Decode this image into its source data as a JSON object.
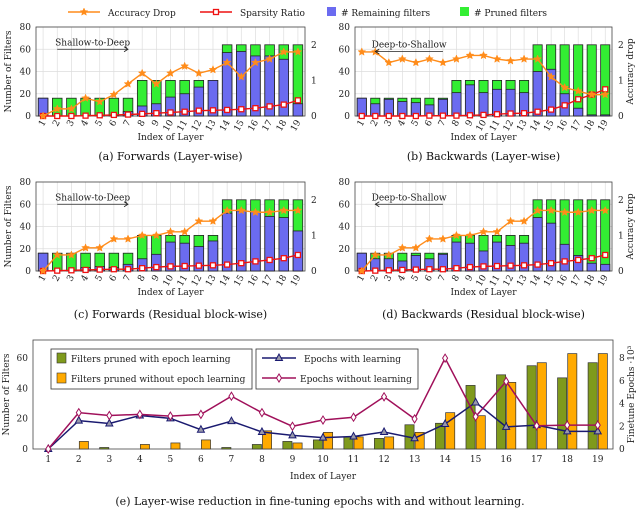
{
  "legend": {
    "accuracy": "Accuracy Drop",
    "sparsity": "Sparsity Ratio",
    "remaining": "# Remaining filters",
    "pruned": "# Pruned filters"
  },
  "colors": {
    "remaining": "#6b6bf0",
    "pruned": "#33ee33",
    "accuracy": "#ff8c1a",
    "sparsity": "#ee1111",
    "with_bar": "#7f9a1c",
    "without_bar": "#ffaa00",
    "with_line": "#1a1a70",
    "without_line": "#a0105a"
  },
  "chart_data": [
    {
      "type": "bar",
      "id": "a",
      "caption": "(a) Forwards (Layer-wise)",
      "annotation": "Shallow-to-Deep",
      "direction": "right",
      "xlabel": "Index of Layer",
      "ylabel": "Number of Filters",
      "y2label": "",
      "ylim": [
        0,
        80
      ],
      "y2lim": [
        0,
        2.5
      ],
      "categories": [
        "1",
        "2",
        "3",
        "4",
        "5",
        "6",
        "7",
        "8",
        "9",
        "10",
        "11",
        "12",
        "13",
        "14",
        "15",
        "16",
        "17",
        "18",
        "19"
      ],
      "total": [
        16,
        16,
        16,
        16,
        16,
        16,
        16,
        32,
        32,
        32,
        32,
        32,
        32,
        64,
        64,
        64,
        64,
        64,
        64
      ],
      "remaining": [
        16,
        0,
        0,
        0,
        0,
        0,
        4,
        9,
        11,
        17,
        20,
        26,
        32,
        57,
        58,
        54,
        54,
        51,
        11
      ],
      "accuracy_drop": [
        0,
        0.2,
        0.2,
        0.5,
        0.4,
        0.6,
        0.9,
        1.2,
        0.9,
        1.2,
        1.4,
        1.2,
        1.3,
        1.5,
        1.1,
        1.5,
        1.6,
        1.8,
        1.8
      ],
      "sparsity_ratio": [
        0,
        0,
        0,
        0.01,
        0.02,
        0.03,
        0.04,
        0.06,
        0.08,
        0.1,
        0.12,
        0.15,
        0.16,
        0.17,
        0.19,
        0.22,
        0.27,
        0.32,
        0.44
      ]
    },
    {
      "type": "bar",
      "id": "b",
      "caption": "(b) Backwards (Layer-wise)",
      "annotation": "Deep-to-Shallow",
      "direction": "left",
      "xlabel": "Index of Layer",
      "ylabel": "",
      "y2label": "Accuracy drop",
      "ylim": [
        0,
        80
      ],
      "y2lim": [
        0,
        2.5
      ],
      "categories": [
        "1",
        "2",
        "3",
        "4",
        "5",
        "6",
        "7",
        "8",
        "9",
        "10",
        "11",
        "12",
        "13",
        "14",
        "15",
        "16",
        "17",
        "18",
        "19"
      ],
      "total": [
        16,
        16,
        16,
        16,
        16,
        16,
        16,
        32,
        32,
        32,
        32,
        32,
        32,
        64,
        64,
        64,
        64,
        64,
        64
      ],
      "remaining": [
        16,
        11,
        15,
        13,
        12,
        10,
        15,
        21,
        28,
        21,
        24,
        24,
        21,
        40,
        42,
        20,
        7,
        1,
        1
      ],
      "accuracy_drop": [
        1.8,
        1.8,
        1.5,
        1.6,
        1.5,
        1.6,
        1.5,
        1.6,
        1.7,
        1.7,
        1.6,
        1.55,
        1.6,
        1.6,
        1.1,
        0.8,
        0.7,
        0.6,
        0.6
      ],
      "sparsity_ratio": [
        0,
        0,
        0,
        0,
        0,
        0.01,
        0.01,
        0.01,
        0.02,
        0.03,
        0.05,
        0.07,
        0.08,
        0.12,
        0.18,
        0.3,
        0.47,
        0.6,
        0.75
      ]
    },
    {
      "type": "bar",
      "id": "c",
      "caption": "(c) Forwards (Residual block-wise)",
      "annotation": "Shallow-to-Deep",
      "direction": "right",
      "xlabel": "Index of Layer",
      "ylabel": "Number of Filters",
      "y2label": "",
      "ylim": [
        0,
        80
      ],
      "y2lim": [
        0,
        2.5
      ],
      "categories": [
        "1",
        "2",
        "3",
        "4",
        "5",
        "6",
        "7",
        "8",
        "9",
        "10",
        "11",
        "12",
        "13",
        "14",
        "15",
        "16",
        "17",
        "18",
        "19"
      ],
      "total": [
        16,
        16,
        16,
        16,
        16,
        16,
        16,
        32,
        32,
        32,
        32,
        32,
        32,
        64,
        64,
        64,
        64,
        64,
        64
      ],
      "remaining": [
        16,
        0,
        0,
        3,
        4,
        3,
        6,
        11,
        15,
        26,
        25,
        22,
        27,
        52,
        54,
        53,
        49,
        48,
        36
      ],
      "accuracy_drop": [
        0,
        0.45,
        0.45,
        0.65,
        0.65,
        0.9,
        0.9,
        1.0,
        1.0,
        1.1,
        1.1,
        1.4,
        1.4,
        1.7,
        1.7,
        1.65,
        1.65,
        1.7,
        1.7
      ],
      "sparsity_ratio": [
        0,
        0.01,
        0.02,
        0.03,
        0.04,
        0.05,
        0.05,
        0.08,
        0.11,
        0.13,
        0.14,
        0.15,
        0.16,
        0.18,
        0.22,
        0.27,
        0.31,
        0.36,
        0.45
      ]
    },
    {
      "type": "bar",
      "id": "d",
      "caption": "(d) Backwards (Residual block-wise)",
      "annotation": "Deep-to-Shallow",
      "direction": "left",
      "xlabel": "Index of Layer",
      "ylabel": "",
      "y2label": "Accuracy drop",
      "ylim": [
        0,
        80
      ],
      "y2lim": [
        0,
        2.5
      ],
      "categories": [
        "1",
        "2",
        "3",
        "4",
        "5",
        "6",
        "7",
        "8",
        "9",
        "10",
        "11",
        "12",
        "13",
        "14",
        "15",
        "16",
        "17",
        "18",
        "19"
      ],
      "total": [
        16,
        16,
        16,
        16,
        16,
        16,
        16,
        32,
        32,
        32,
        32,
        32,
        32,
        64,
        64,
        64,
        64,
        64,
        64
      ],
      "remaining": [
        16,
        11,
        11,
        9,
        14,
        11,
        15,
        26,
        25,
        18,
        26,
        23,
        25,
        48,
        43,
        24,
        14,
        7,
        6
      ],
      "accuracy_drop": [
        0,
        0.45,
        0.45,
        0.65,
        0.65,
        0.9,
        0.9,
        1.0,
        1.0,
        1.1,
        1.1,
        1.4,
        1.4,
        1.7,
        1.7,
        1.65,
        1.65,
        1.7,
        1.7
      ],
      "sparsity_ratio": [
        0,
        0.01,
        0.02,
        0.03,
        0.04,
        0.05,
        0.05,
        0.08,
        0.11,
        0.13,
        0.14,
        0.15,
        0.16,
        0.18,
        0.22,
        0.27,
        0.31,
        0.36,
        0.45
      ]
    },
    {
      "type": "bar",
      "id": "e",
      "caption": "(e) Layer-wise reduction in fine-tuning epochs with and without learning.",
      "xlabel": "Index of Layer",
      "ylabel": "Number of Filters",
      "y2label": "Finetune Epochs ·10³",
      "ylim": [
        0,
        72
      ],
      "y2lim": [
        0,
        9.6
      ],
      "yticks": [
        0,
        20,
        40,
        60
      ],
      "y2ticks": [
        0,
        2,
        4,
        6,
        8
      ],
      "categories": [
        "1",
        "2",
        "3",
        "4",
        "5",
        "6",
        "7",
        "8",
        "9",
        "10",
        "11",
        "12",
        "13",
        "14",
        "15",
        "16",
        "17",
        "18",
        "19"
      ],
      "series": [
        {
          "name": "Filters pruned with epoch learning",
          "kind": "bar",
          "values": [
            0,
            0,
            1,
            0,
            0,
            0,
            1,
            3,
            5,
            6,
            8,
            7,
            16,
            17,
            42,
            49,
            55,
            47,
            57
          ]
        },
        {
          "name": "Filters pruned without epoch learning",
          "kind": "bar",
          "values": [
            0,
            5,
            0,
            3,
            4,
            6,
            0,
            12,
            4,
            11,
            8,
            8,
            11,
            24,
            22,
            44,
            57,
            63,
            63
          ]
        },
        {
          "name": "Epochs with learning",
          "kind": "line",
          "values": [
            0,
            2.5,
            2.25,
            2.95,
            2.7,
            1.7,
            2.45,
            1.5,
            1.2,
            1.0,
            1.1,
            1.5,
            0.95,
            2.2,
            4.1,
            1.95,
            2.1,
            1.55,
            1.55
          ]
        },
        {
          "name": "Epochs without learning",
          "kind": "line",
          "values": [
            0,
            3.2,
            2.95,
            3.05,
            2.9,
            3.05,
            4.65,
            3.2,
            2.0,
            2.55,
            2.8,
            4.6,
            2.65,
            8.0,
            2.85,
            5.95,
            2.05,
            2.1,
            2.1
          ]
        }
      ]
    }
  ]
}
